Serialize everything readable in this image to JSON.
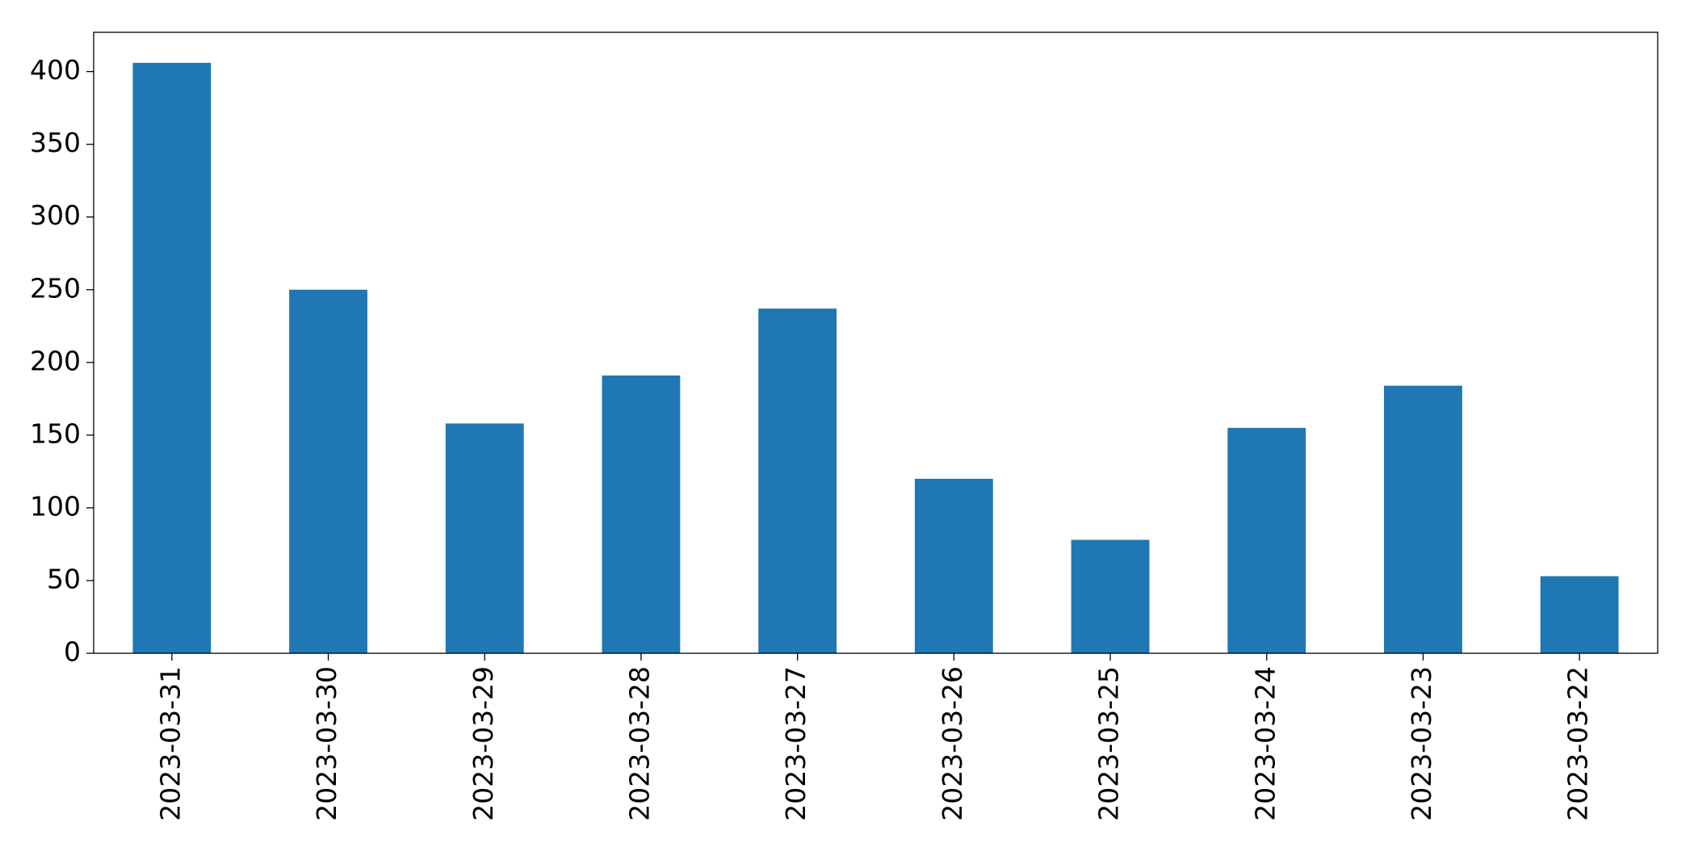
{
  "chart_data": {
    "type": "bar",
    "categories": [
      "2023-03-31",
      "2023-03-30",
      "2023-03-29",
      "2023-03-28",
      "2023-03-27",
      "2023-03-26",
      "2023-03-25",
      "2023-03-24",
      "2023-03-23",
      "2023-03-22"
    ],
    "values": [
      406,
      250,
      158,
      191,
      237,
      120,
      78,
      155,
      184,
      53
    ],
    "color": "#1f77b4",
    "ylim": [
      0,
      427
    ],
    "yticks": [
      0,
      50,
      100,
      150,
      200,
      250,
      300,
      350,
      400
    ],
    "grid": false
  }
}
